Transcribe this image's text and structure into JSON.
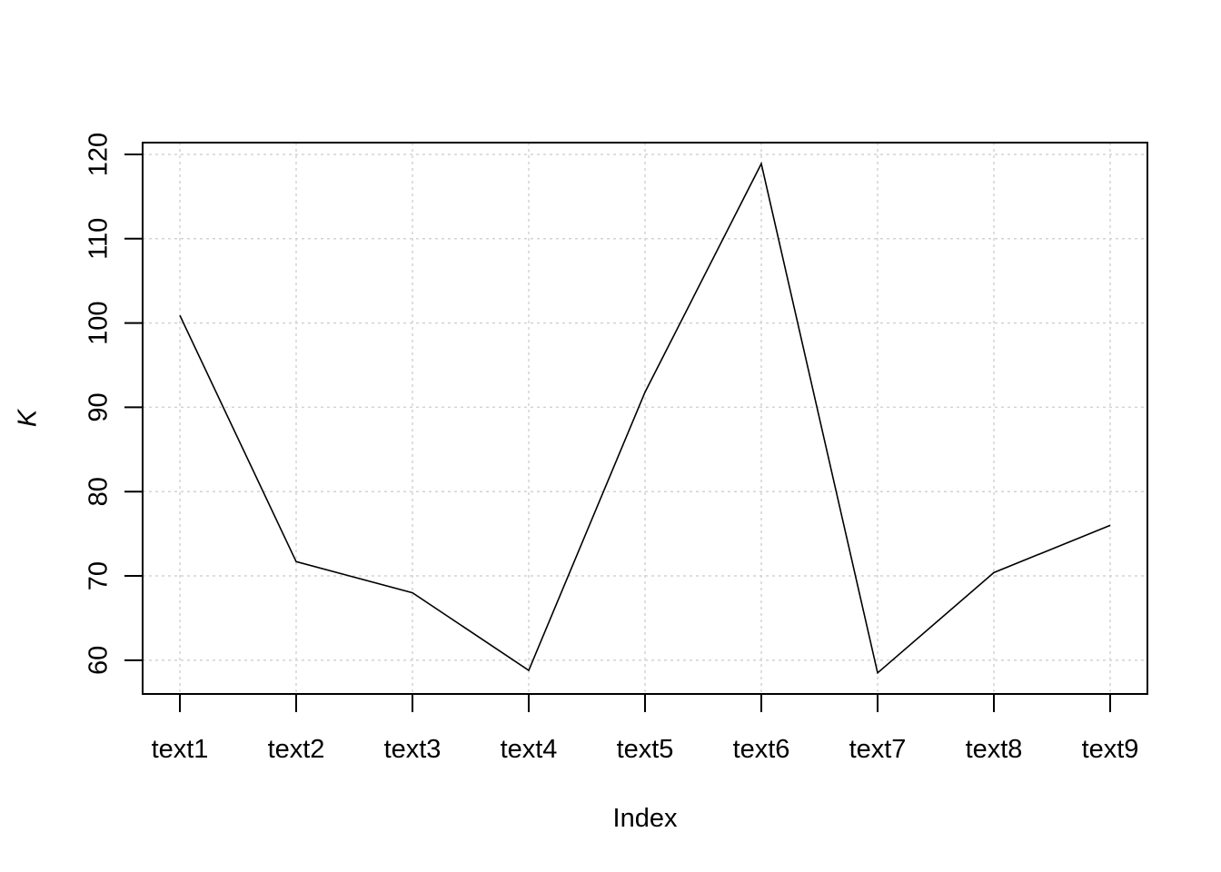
{
  "chart_data": {
    "type": "line",
    "title": "",
    "xlabel": "Index",
    "ylabel": "K",
    "categories": [
      "text1",
      "text2",
      "text3",
      "text4",
      "text5",
      "text6",
      "text7",
      "text8",
      "text9"
    ],
    "series": [
      {
        "values": [
          100.9,
          71.7,
          68.0,
          58.8,
          91.8,
          118.9,
          58.5,
          70.4,
          76.0
        ]
      }
    ],
    "ylim": [
      56,
      121.4
    ],
    "yticks": [
      60,
      70,
      80,
      90,
      100,
      110,
      120
    ],
    "grid": true,
    "line_color": "#000000",
    "grid_color": "#d3d3d3"
  }
}
